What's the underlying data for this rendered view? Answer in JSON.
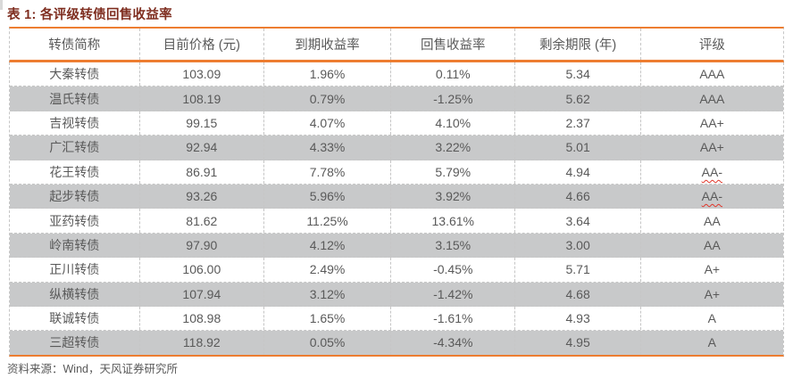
{
  "title": "表 1: 各评级转债回售收益率",
  "colors": {
    "accent_orange": "#ED7D31",
    "title_dark_red": "#7e2d1f",
    "text_gray": "#595959",
    "alt_row_gray": "#c8c9ca",
    "spellcheck_red": "#e0362a"
  },
  "table": {
    "columns": [
      "转债简称",
      "目前价格 (元)",
      "到期收益率",
      "回售收益率",
      "剩余期限 (年)",
      "评级"
    ],
    "field_order": [
      "name",
      "price",
      "ytm",
      "put_yield",
      "remaining_years",
      "rating"
    ],
    "rows": [
      {
        "name": "大秦转债",
        "price": "103.09",
        "ytm": "1.96%",
        "put_yield": "0.11%",
        "remaining_years": "5.34",
        "rating": "AAA",
        "rating_wavy_underline": false
      },
      {
        "name": "温氏转债",
        "price": "108.19",
        "ytm": "0.79%",
        "put_yield": "-1.25%",
        "remaining_years": "5.62",
        "rating": "AAA",
        "rating_wavy_underline": false
      },
      {
        "name": "吉视转债",
        "price": "99.15",
        "ytm": "4.07%",
        "put_yield": "4.10%",
        "remaining_years": "2.37",
        "rating": "AA+",
        "rating_wavy_underline": false
      },
      {
        "name": "广汇转债",
        "price": "92.94",
        "ytm": "4.33%",
        "put_yield": "3.22%",
        "remaining_years": "5.01",
        "rating": "AA+",
        "rating_wavy_underline": false
      },
      {
        "name": "花王转债",
        "price": "86.91",
        "ytm": "7.78%",
        "put_yield": "5.79%",
        "remaining_years": "4.94",
        "rating": "AA-",
        "rating_wavy_underline": true
      },
      {
        "name": "起步转债",
        "price": "93.26",
        "ytm": "5.96%",
        "put_yield": "3.92%",
        "remaining_years": "4.66",
        "rating": "AA-",
        "rating_wavy_underline": true
      },
      {
        "name": "亚药转债",
        "price": "81.62",
        "ytm": "11.25%",
        "put_yield": "13.61%",
        "remaining_years": "3.64",
        "rating": "AA",
        "rating_wavy_underline": false
      },
      {
        "name": "岭南转债",
        "price": "97.90",
        "ytm": "4.12%",
        "put_yield": "3.15%",
        "remaining_years": "3.00",
        "rating": "AA",
        "rating_wavy_underline": false
      },
      {
        "name": "正川转债",
        "price": "106.00",
        "ytm": "2.49%",
        "put_yield": "-0.45%",
        "remaining_years": "5.71",
        "rating": "A+",
        "rating_wavy_underline": false
      },
      {
        "name": "纵横转债",
        "price": "107.94",
        "ytm": "3.12%",
        "put_yield": "-1.42%",
        "remaining_years": "4.68",
        "rating": "A+",
        "rating_wavy_underline": false
      },
      {
        "name": "联诚转债",
        "price": "108.98",
        "ytm": "1.65%",
        "put_yield": "-1.61%",
        "remaining_years": "4.93",
        "rating": "A",
        "rating_wavy_underline": false
      },
      {
        "name": "三超转债",
        "price": "118.92",
        "ytm": "0.05%",
        "put_yield": "-4.34%",
        "remaining_years": "4.95",
        "rating": "A",
        "rating_wavy_underline": false
      }
    ]
  },
  "footer": {
    "source": "资料来源：Wind，天风证券研究所"
  }
}
